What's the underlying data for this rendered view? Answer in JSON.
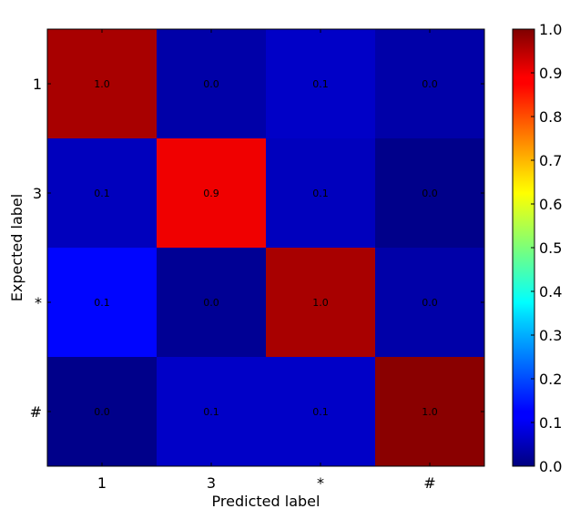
{
  "chart_data": {
    "type": "heatmap",
    "xlabel": "Predicted label",
    "ylabel": "Expected label",
    "x_categories": [
      "1",
      "3",
      "*",
      "#"
    ],
    "y_categories": [
      "1",
      "3",
      "*",
      "#"
    ],
    "values": [
      [
        0.96,
        0.04,
        0.07,
        0.04
      ],
      [
        0.06,
        0.89,
        0.06,
        0.01
      ],
      [
        0.13,
        0.02,
        0.96,
        0.04
      ],
      [
        0.01,
        0.07,
        0.07,
        0.99
      ]
    ],
    "cell_labels": [
      [
        "1.0",
        "0.0",
        "0.1",
        "0.0"
      ],
      [
        "0.1",
        "0.9",
        "0.1",
        "0.0"
      ],
      [
        "0.1",
        "0.0",
        "1.0",
        "0.0"
      ],
      [
        "0.0",
        "0.1",
        "0.1",
        "1.0"
      ]
    ],
    "colorbar": {
      "colormap": "jet",
      "range": [
        0.0,
        1.0
      ],
      "ticks": [
        "0.0",
        "0.1",
        "0.2",
        "0.3",
        "0.4",
        "0.5",
        "0.6",
        "0.7",
        "0.8",
        "0.9",
        "1.0"
      ]
    },
    "grid": false
  }
}
